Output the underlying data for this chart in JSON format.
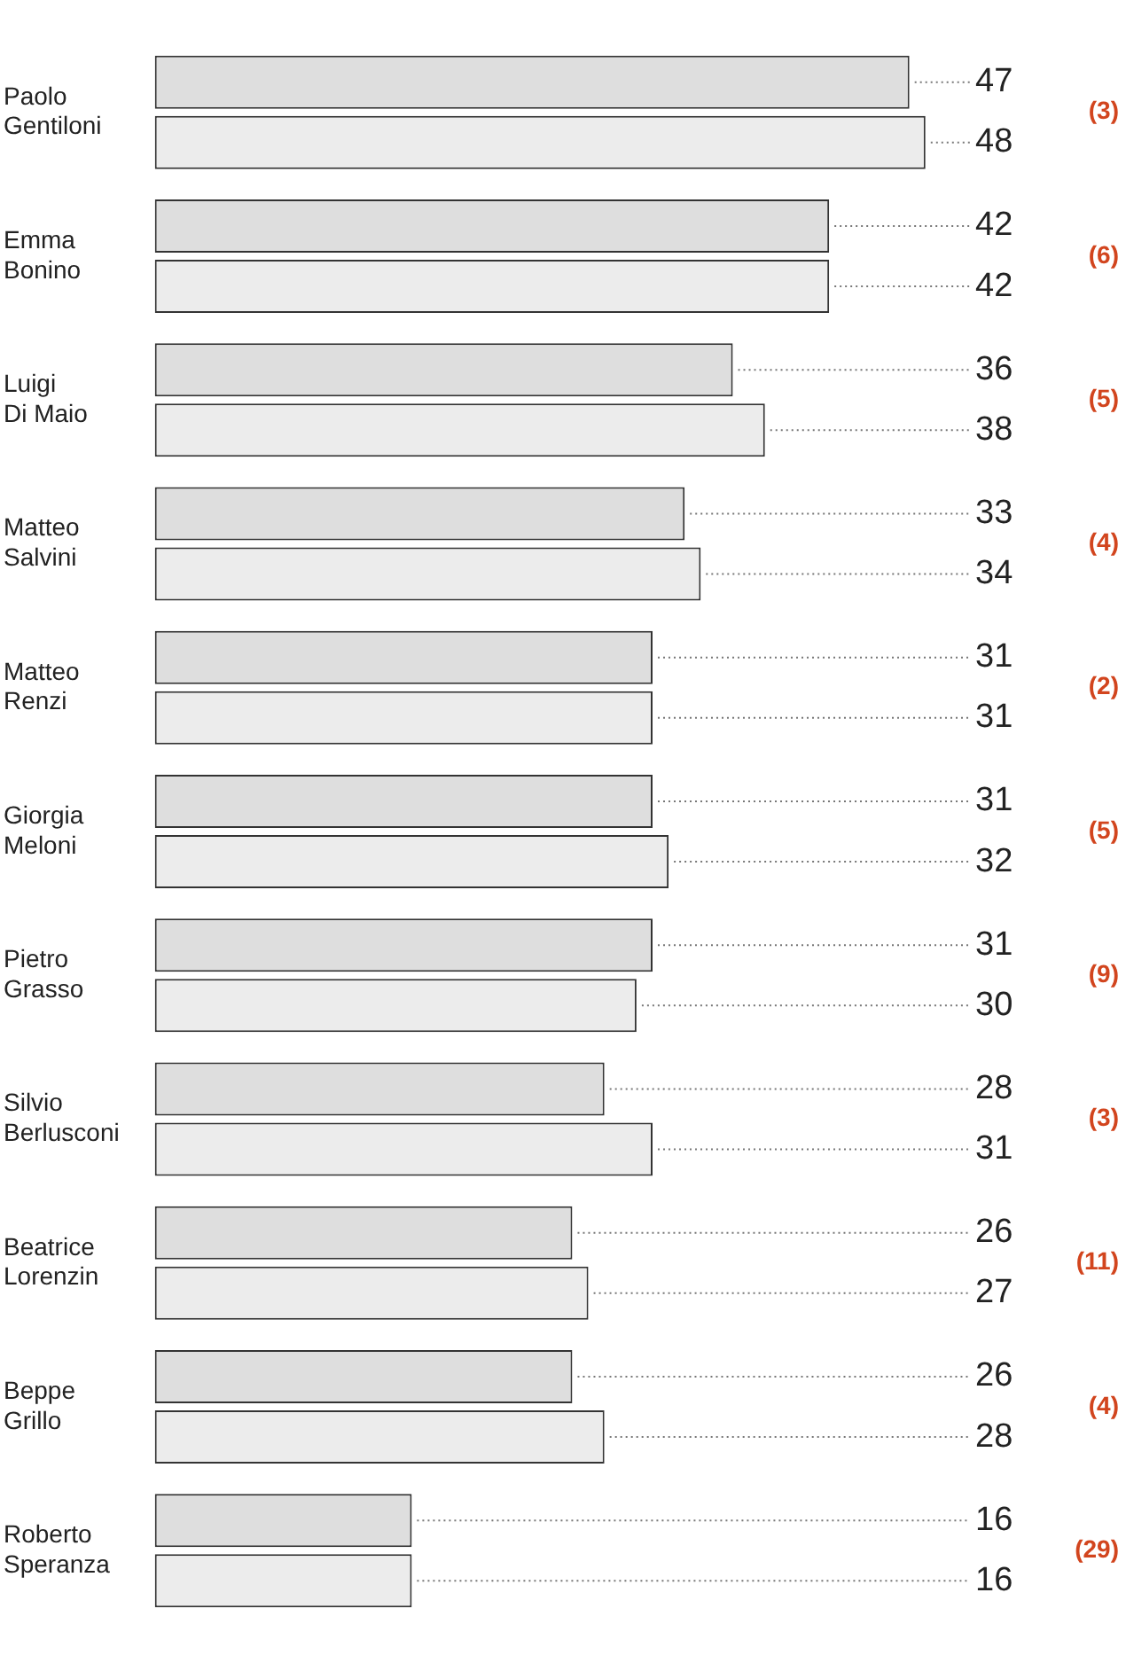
{
  "chart_data": {
    "type": "bar",
    "orientation": "horizontal",
    "legend": false,
    "tick_labels": "y",
    "categories": [
      "Paolo Gentiloni",
      "Emma Bonino",
      "Luigi Di Maio",
      "Matteo Salvini",
      "Matteo Renzi",
      "Giorgia Meloni",
      "Pietro Grasso",
      "Silvio Berlusconi",
      "Beatrice Lorenzin",
      "Beppe Grillo",
      "Roberto Speranza"
    ],
    "series": [
      {
        "color": "#dedede",
        "values": [
          47,
          42,
          36,
          33,
          31,
          31,
          31,
          28,
          26,
          26,
          16
        ],
        "value_labels": [
          "47",
          "42",
          "36",
          "33",
          "31",
          "31",
          "31",
          "28",
          "26",
          "26",
          "16"
        ]
      },
      {
        "color": "#ececec",
        "values": [
          48,
          42,
          38,
          34,
          31,
          32,
          30,
          31,
          27,
          28,
          16
        ],
        "value_labels": [
          "48",
          "42",
          "38",
          "34",
          "31",
          "32",
          "30",
          "31",
          "27",
          "28",
          "16"
        ]
      }
    ],
    "annotations": [
      "(3)",
      "(6)",
      "(5)",
      "(4)",
      "(2)",
      "(5)",
      "(9)",
      "(3)",
      "(11)",
      "(4)",
      "(29)"
    ]
  }
}
